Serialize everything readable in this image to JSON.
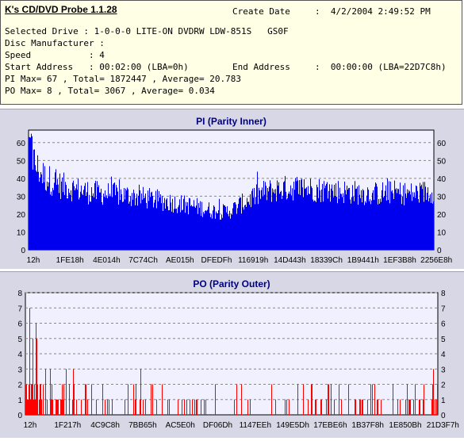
{
  "header": {
    "app_title": "K's CD/DVD Probe 1.1.28",
    "create_date_label": "Create Date",
    "create_date_value": ":  4/2/2004 2:49:52 PM",
    "selected_drive": "Selected Drive : 1-0-0-0 LITE-ON DVDRW LDW-851S   GS0F",
    "disc_manufacturer": "Disc Manufacturer :",
    "speed": "Speed           : 4",
    "start_address": "Start Address   : 00:02:00 (LBA=0h)",
    "end_address_label": "End Address",
    "end_address_value": ":  00:00:00 (LBA=22D7C8h)",
    "pi_summary": "PI Max= 67 , Total= 1872447 , Average= 20.783",
    "po_summary": "PO Max= 8 , Total= 3067 , Average= 0.034"
  },
  "chart_data": [
    {
      "type": "bar",
      "title": "PI (Parity Inner)",
      "ylim": [
        0,
        67
      ],
      "y_ticks": [
        0,
        10,
        20,
        30,
        40,
        50,
        60
      ],
      "x_tick_labels": [
        "12h",
        "1FE18h",
        "4E014h",
        "7C74Ch",
        "AE015h",
        "DFEDFh",
        "116919h",
        "14D443h",
        "18339Ch",
        "1B9441h",
        "1EF3B8h",
        "2256E8h"
      ],
      "grid": true,
      "color": "#0000ee",
      "profile_x": [
        0,
        0.01,
        0.02,
        0.04,
        0.08,
        0.15,
        0.25,
        0.35,
        0.42,
        0.45,
        0.48,
        0.5,
        0.54,
        0.58,
        0.62,
        0.66,
        0.7,
        0.75,
        0.8,
        0.85,
        0.9,
        0.95,
        1.0
      ],
      "profile_y": [
        64,
        55,
        50,
        44,
        39,
        35,
        33,
        29,
        26,
        24,
        23,
        24,
        30,
        35,
        37,
        38,
        37,
        36,
        35,
        34,
        35,
        34,
        36
      ],
      "max": 67
    },
    {
      "type": "bar",
      "title": "PO (Parity Outer)",
      "ylim": [
        0,
        8
      ],
      "y_ticks": [
        0,
        1,
        2,
        3,
        4,
        5,
        6,
        7,
        8
      ],
      "x_tick_labels": [
        "12h",
        "1F217h",
        "4C9C8h",
        "7BB65h",
        "AC5E0h",
        "DF06Dh",
        "1147EEh",
        "149E5Dh",
        "17EBE6h",
        "1B37F8h",
        "1E850Bh",
        "21D3F7h"
      ],
      "grid": true,
      "color": "#ff0000",
      "max": 8
    }
  ]
}
